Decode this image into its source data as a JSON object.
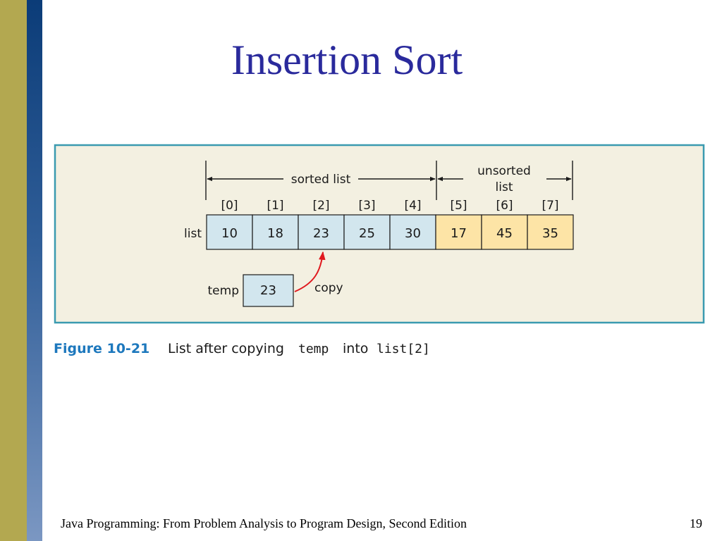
{
  "slide": {
    "title": "Insertion Sort",
    "footer": "Java Programming: From Problem Analysis to Program Design, Second Edition",
    "page_number": "19"
  },
  "figure": {
    "sorted_label": "sorted list",
    "unsorted_label_line1": "unsorted",
    "unsorted_label_line2": "list",
    "array_label": "list",
    "indices": [
      "[0]",
      "[1]",
      "[2]",
      "[3]",
      "[4]",
      "[5]",
      "[6]",
      "[7]"
    ],
    "values": [
      "10",
      "18",
      "23",
      "25",
      "30",
      "17",
      "45",
      "35"
    ],
    "sorted_count": 5,
    "temp_label": "temp",
    "temp_value": "23",
    "copy_label": "copy",
    "caption_number": "Figure 10-21",
    "caption_text_1": "List after copying",
    "caption_code_1": "temp",
    "caption_text_2": "into",
    "caption_code_2": "list[2]",
    "colors": {
      "panel_bg": "#f3f0e1",
      "panel_border": "#3a9ab0",
      "sorted_cell": "#d2e6ee",
      "unsorted_cell": "#fde4a6",
      "copy_arrow": "#e0191e",
      "caption_number": "#1d78bd"
    }
  }
}
